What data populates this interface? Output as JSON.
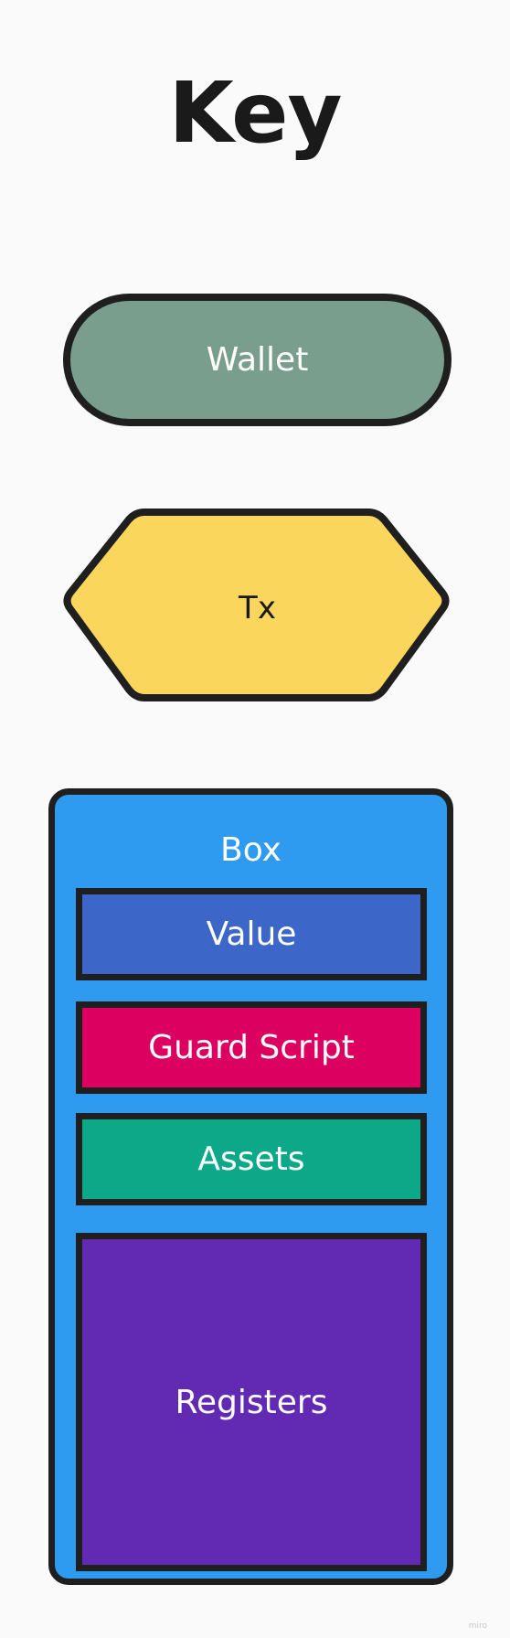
{
  "title": "Key",
  "shapes": {
    "wallet": {
      "label": "Wallet",
      "color": "#7a9e8d"
    },
    "tx": {
      "label": "Tx",
      "color": "#fbd65d"
    },
    "box": {
      "label": "Box",
      "color": "#2e9bf0",
      "fields": {
        "value": {
          "label": "Value",
          "color": "#3c67c9"
        },
        "guard_script": {
          "label": "Guard Script",
          "color": "#dc0060"
        },
        "assets": {
          "label": "Assets",
          "color": "#0da887"
        },
        "registers": {
          "label": "Registers",
          "color": "#6229b2"
        }
      }
    }
  },
  "watermark": "miro"
}
